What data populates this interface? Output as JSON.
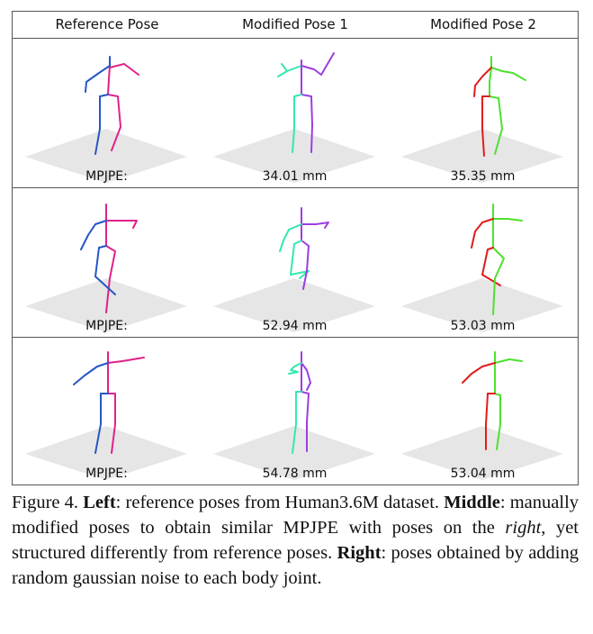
{
  "figure": {
    "columns": [
      "Reference Pose",
      "Modified Pose 1",
      "Modified Pose 2"
    ],
    "rows": [
      {
        "values": [
          "MPJPE:",
          "34.01 mm",
          "35.35 mm"
        ]
      },
      {
        "values": [
          "MPJPE:",
          "52.94 mm",
          "53.03 mm"
        ]
      },
      {
        "values": [
          "MPJPE:",
          "54.78 mm",
          "53.04 mm"
        ]
      }
    ],
    "colors": {
      "reference_left": "#2457c5",
      "reference_right": "#e0218a",
      "mod1_left": "#34e8b0",
      "mod1_right": "#9d3de0",
      "mod2_left": "#e01c1c",
      "mod2_right": "#4ee02e",
      "floor": "#e6e6e6"
    }
  },
  "caption": {
    "label": "Figure 4.",
    "left_bold": "Left",
    "left_text": ": reference poses from Human3.6M dataset.",
    "middle_bold": "Middle",
    "middle_text_a": ": manually modified poses to obtain similar MPJPE with poses on the",
    "middle_italic": "right",
    "middle_text_b": ", yet structured differently from reference poses.",
    "right_bold": "Right",
    "right_text": ": poses obtained by adding random gaussian noise to each body joint."
  }
}
